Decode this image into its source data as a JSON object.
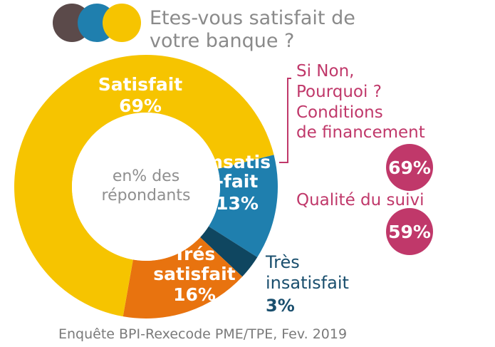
{
  "header": {
    "title_line1": "Etes-vous satisfait de",
    "title_line2": "votre banque ?",
    "legend_colors": [
      "#5b4a4a",
      "#1f7fae",
      "#f6c400"
    ]
  },
  "chart_data": {
    "type": "pie",
    "variant": "donut",
    "title": "Etes-vous satisfait de votre banque ?",
    "center_label": [
      "en% des",
      "répondants"
    ],
    "slices": [
      {
        "name": "Satisfait",
        "label_lines": [
          "Satisfait",
          "69%"
        ],
        "value": 69,
        "color": "#f6c400"
      },
      {
        "name": "Insatisfait",
        "label_lines": [
          "Insatis",
          "-fait",
          "13%"
        ],
        "value": 13,
        "color": "#1f7fae"
      },
      {
        "name": "Très insatisfait",
        "label_lines": [
          "Très",
          "insatisfait",
          "3%"
        ],
        "value": 3,
        "color": "#0f4660"
      },
      {
        "name": "Trés satisfait",
        "label_lines": [
          "Trés",
          "satisfait",
          "16%"
        ],
        "value": 16,
        "color": "#e8730f"
      }
    ]
  },
  "side_panel": {
    "question_line1": "Si Non,",
    "question_line2": "Pourquoi ?",
    "reasons": [
      {
        "label_lines": [
          "Conditions",
          "de financement"
        ],
        "value": "69%"
      },
      {
        "label_lines": [
          "Qualité du suivi"
        ],
        "value": "59%"
      }
    ],
    "accent_color": "#c0386a"
  },
  "footer": {
    "source": "Enquête BPI-Rexecode PME/TPE, Fev. 2019"
  }
}
